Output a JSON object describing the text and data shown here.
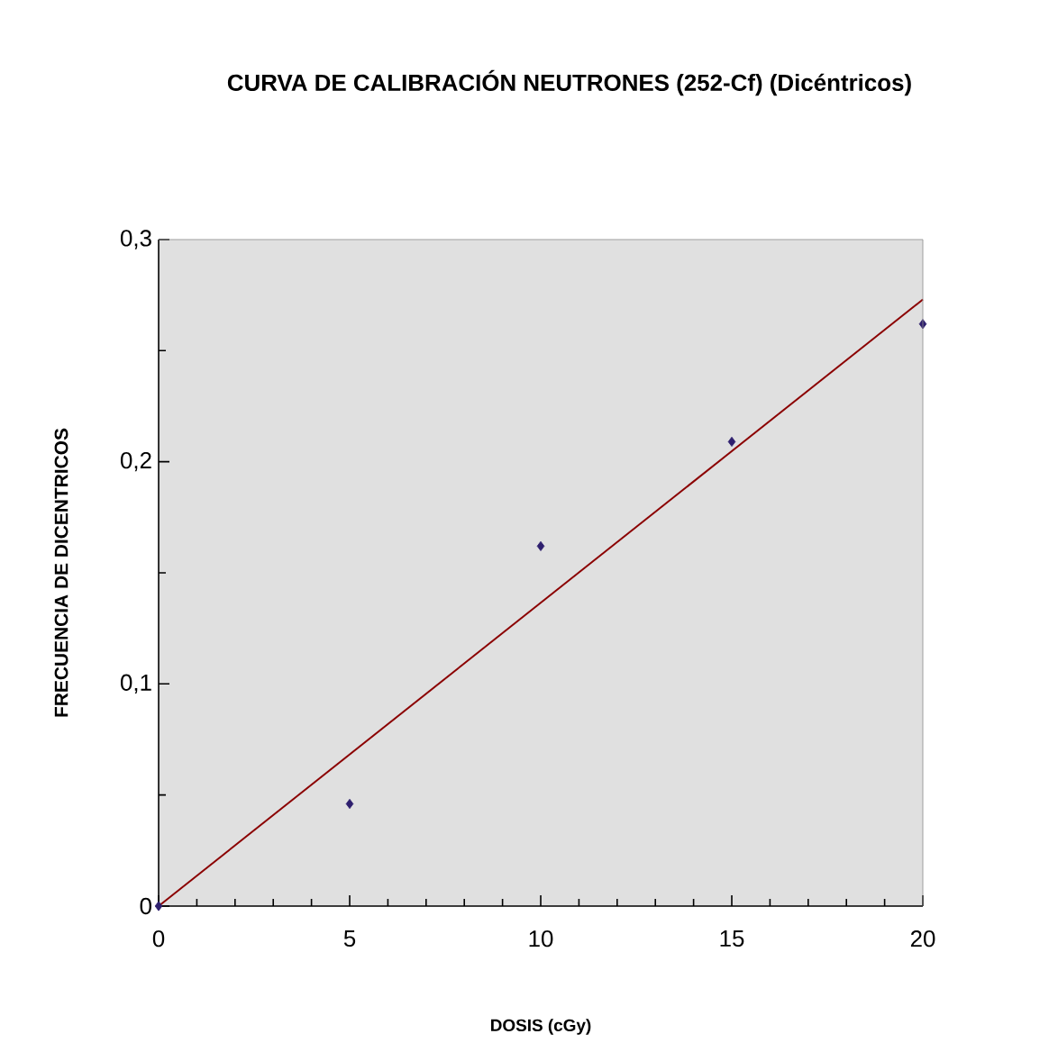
{
  "chart_data": {
    "type": "scatter",
    "title": "CURVA DE CALIBRACIÓN NEUTRONES (252-Cf) (Dicéntricos)",
    "xlabel": "DOSIS (cGy)",
    "ylabel": "FRECUENCIA DE DICENTRICOS",
    "x": [
      0,
      5,
      10,
      15,
      20
    ],
    "series": [
      {
        "color": "#2e1f6e",
        "values": [
          0,
          0.046,
          0.162,
          0.209,
          0.262
        ],
        "marker": "diamond"
      },
      {
        "type": "line",
        "color": "#8b0000",
        "x": [
          0,
          20
        ],
        "values": [
          0,
          0.273
        ],
        "marker": "none",
        "line_style": "solid"
      }
    ],
    "xlim": [
      0,
      20
    ],
    "xticks": [
      0,
      5,
      10,
      15,
      20
    ],
    "ylim": [
      0,
      0.3
    ],
    "yticks": [
      {
        "value": 0,
        "label": "0"
      },
      {
        "value": 0.1,
        "label": "0,1"
      },
      {
        "value": 0.2,
        "label": "0,2"
      },
      {
        "value": 0.3,
        "label": "0,3"
      }
    ],
    "grid": false
  }
}
